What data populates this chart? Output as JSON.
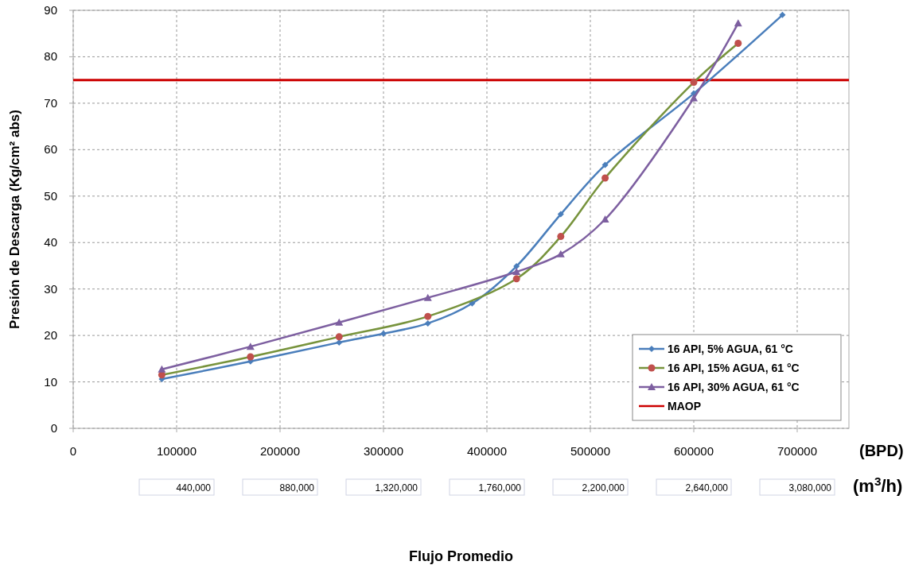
{
  "chart_data": {
    "type": "line",
    "ylabel": "Presión de Descarga (Kg/cm² abs)",
    "xlim": [
      0,
      750000
    ],
    "ylim": [
      0,
      90
    ],
    "xticks": [
      0,
      100000,
      200000,
      300000,
      400000,
      500000,
      600000,
      700000
    ],
    "yticks": [
      0,
      10,
      20,
      30,
      40,
      50,
      60,
      70,
      80,
      90
    ],
    "grid": true,
    "legend": "bottom right",
    "series": [
      {
        "name": "16 API, 5% AGUA, 61 °C",
        "color": "#4a7ebb",
        "marker": "diamond",
        "x": [
          85700,
          171400,
          257100,
          300000,
          342900,
          385700,
          428600,
          471400,
          514300,
          600000,
          685700
        ],
        "values": [
          10.6,
          14.4,
          18.5,
          20.4,
          22.6,
          26.9,
          34.9,
          46.1,
          56.7,
          72.1,
          89.0
        ]
      },
      {
        "name": "16 API, 15% AGUA, 61 °C",
        "color": "#77933c",
        "colors": [
          "#c0504d",
          "#c0504d",
          "#c0504d",
          "#c0504d",
          "#c0504d",
          "#c0504d",
          "#c0504d",
          "#c0504d",
          "#c0504d"
        ],
        "marker": "circle",
        "x": [
          85700,
          171400,
          257100,
          342900,
          428600,
          471400,
          514300,
          600000,
          642900
        ],
        "values": [
          11.5,
          15.4,
          19.7,
          24.1,
          32.2,
          41.3,
          53.9,
          74.5,
          82.9
        ]
      },
      {
        "name": "16 API, 30% AGUA, 61 °C",
        "color": "#7d5fa0",
        "marker": "triangle",
        "x": [
          85700,
          171400,
          257100,
          342900,
          428600,
          471400,
          514300,
          600000,
          642900
        ],
        "values": [
          12.7,
          17.6,
          22.8,
          28.1,
          33.7,
          37.5,
          45.0,
          71.1,
          87.2
        ]
      }
    ],
    "ref_lines": [
      {
        "axis": "y",
        "value": 75,
        "label": "MAOP",
        "color": "#cc0000",
        "line_style": "solid"
      }
    ],
    "annotations": [
      "(BPD)",
      "(m$^{3}$/h)",
      "Flujo Promedio",
      "440,000",
      "880,000",
      "1,320,000",
      "1,760,000",
      "2,200,000",
      "2,640,000",
      "3,080,000"
    ]
  }
}
